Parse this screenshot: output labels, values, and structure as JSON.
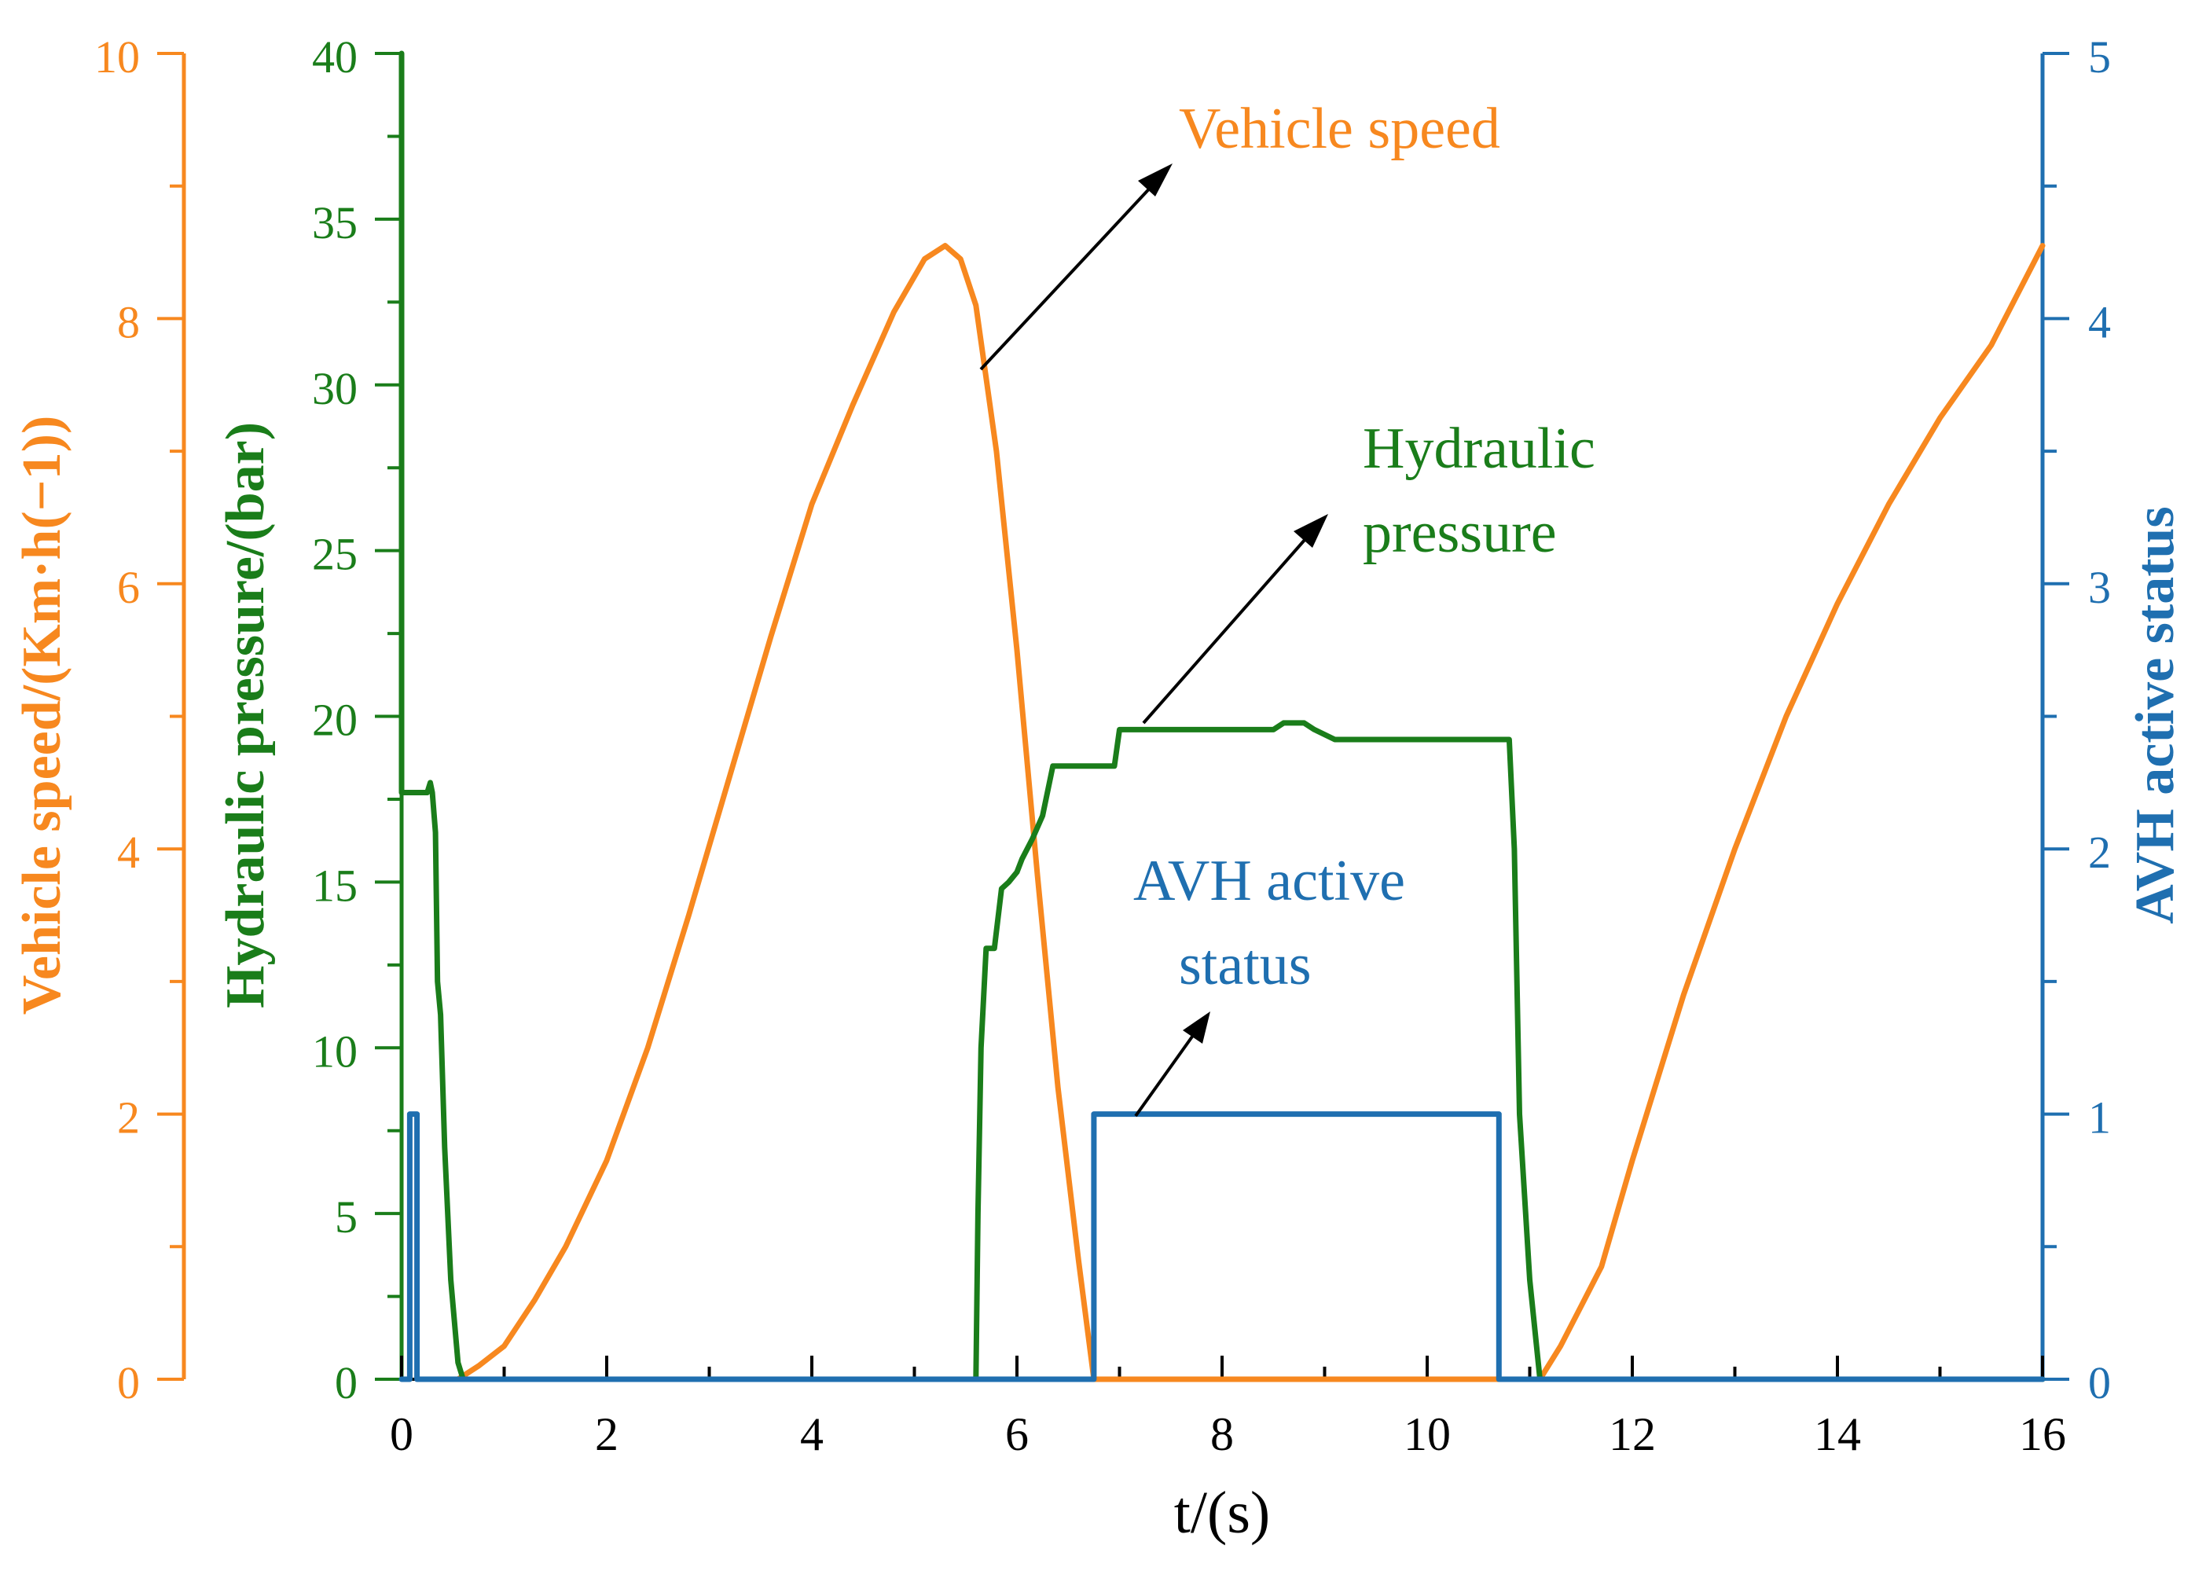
{
  "chart_data": {
    "type": "line",
    "title": "",
    "xlabel": "t/(s)",
    "xlim": [
      0,
      16
    ],
    "x_ticks": [
      0,
      2,
      4,
      6,
      8,
      10,
      12,
      14,
      16
    ],
    "x_tick_labels": [
      "0",
      "2",
      "4",
      "6",
      "8",
      "10",
      "12",
      "14",
      "16"
    ],
    "axes": [
      {
        "id": "speed",
        "label": "Vehicle speed/(Km·h(−1))",
        "side": "far-left",
        "range": [
          0,
          10
        ],
        "ticks": [
          0,
          2,
          4,
          6,
          8,
          10
        ],
        "tick_labels": [
          "0",
          "2",
          "4",
          "6",
          "8",
          "10"
        ],
        "color": "#f7881f"
      },
      {
        "id": "pressure",
        "label": "Hydraulic pressure/(bar)",
        "side": "left",
        "range": [
          0,
          40
        ],
        "ticks": [
          0,
          5,
          10,
          15,
          20,
          25,
          30,
          35,
          40
        ],
        "tick_labels": [
          "0",
          "5",
          "10",
          "15",
          "20",
          "25",
          "30",
          "35",
          "40"
        ],
        "color": "#1a7d1a"
      },
      {
        "id": "avh",
        "label": "AVH active status",
        "side": "right",
        "range": [
          0,
          5
        ],
        "ticks": [
          0,
          1,
          2,
          3,
          4,
          5
        ],
        "tick_labels": [
          "0",
          "1",
          "2",
          "3",
          "4",
          "5"
        ],
        "color": "#1f6fb0"
      }
    ],
    "series": [
      {
        "name": "Vehicle speed",
        "axis": "speed",
        "color": "#f7881f",
        "x": [
          0.55,
          0.75,
          1.0,
          1.3,
          1.6,
          2.0,
          2.4,
          2.8,
          3.2,
          3.6,
          4.0,
          4.4,
          4.8,
          5.1,
          5.3,
          5.45,
          5.6,
          5.8,
          6.0,
          6.2,
          6.4,
          6.6,
          6.75,
          7.0,
          8.0,
          9.0,
          10.0,
          11.0,
          11.1,
          11.3,
          11.5,
          11.7,
          12.0,
          12.5,
          13.0,
          13.5,
          14.0,
          14.5,
          15.0,
          15.5,
          16.0
        ],
        "values": [
          0.0,
          0.1,
          0.25,
          0.6,
          1.0,
          1.65,
          2.5,
          3.5,
          4.55,
          5.6,
          6.6,
          7.35,
          8.05,
          8.45,
          8.55,
          8.45,
          8.1,
          7.0,
          5.5,
          3.8,
          2.2,
          0.9,
          0.0,
          0.0,
          0.0,
          0.0,
          0.0,
          0.0,
          0.0,
          0.25,
          0.55,
          0.85,
          1.65,
          2.9,
          4.0,
          5.0,
          5.85,
          6.6,
          7.25,
          7.8,
          8.55
        ]
      },
      {
        "name": "Hydraulic pressure",
        "axis": "pressure",
        "color": "#1a7d1a",
        "x": [
          0.0,
          0.0,
          0.25,
          0.28,
          0.3,
          0.33,
          0.35,
          0.38,
          0.42,
          0.48,
          0.55,
          0.6,
          0.62,
          5.6,
          5.62,
          5.65,
          5.7,
          5.78,
          5.85,
          5.92,
          6.0,
          6.05,
          6.15,
          6.25,
          6.35,
          6.4,
          6.95,
          7.0,
          8.5,
          8.6,
          8.8,
          8.9,
          9.1,
          10.8,
          10.85,
          10.9,
          11.0,
          11.1,
          16.0
        ],
        "values": [
          40.0,
          17.7,
          17.7,
          18.0,
          17.7,
          16.5,
          12.0,
          11.0,
          7.0,
          3.0,
          0.5,
          0.0,
          0.0,
          0.0,
          5.0,
          10.0,
          13.0,
          13.0,
          14.8,
          15.0,
          15.3,
          15.7,
          16.3,
          17.0,
          18.5,
          18.5,
          18.5,
          19.6,
          19.6,
          19.8,
          19.8,
          19.6,
          19.3,
          19.3,
          16.0,
          8.0,
          3.0,
          0.0,
          0.0
        ]
      },
      {
        "name": "AVH active status",
        "axis": "avh",
        "color": "#1f6fb0",
        "x": [
          0.0,
          0.08,
          0.08,
          0.15,
          0.15,
          6.75,
          6.75,
          10.7,
          10.7,
          16.0
        ],
        "values": [
          0,
          0,
          1,
          1,
          0,
          0,
          1,
          1,
          0,
          0
        ]
      }
    ],
    "annotations": [
      {
        "text": "Vehicle speed",
        "color": "#f7881f"
      },
      {
        "text": "Hydraulic",
        "color": "#1a7d1a"
      },
      {
        "text": "pressure",
        "color": "#1a7d1a"
      },
      {
        "text": "AVH active",
        "color": "#1f6fb0"
      },
      {
        "text": "status",
        "color": "#1f6fb0"
      }
    ]
  }
}
